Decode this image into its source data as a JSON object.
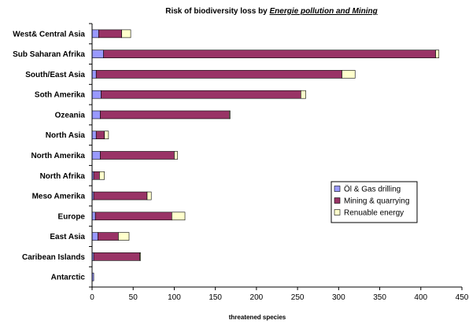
{
  "chart_data": {
    "type": "bar",
    "orientation": "horizontal",
    "stacked": true,
    "title_prefix": "Risk of biodiversity loss by ",
    "title_emphasis": "Energie pollution and Mining",
    "xlabel": "threatened species",
    "ylabel": "",
    "xlim": [
      0,
      450
    ],
    "xticks": [
      "0",
      "50",
      "100",
      "150",
      "200",
      "250",
      "300",
      "350",
      "400",
      "450"
    ],
    "grid": false,
    "legend_position": "right-middle",
    "categories": [
      "West& Central Asia",
      "Sub Saharan Afrika",
      "South/East Asia",
      "Soth Amerika",
      "Ozeania",
      "North Asia",
      "North Amerika",
      "North Afrika",
      "Meso Amerika",
      "Europe",
      "East Asia",
      "Caribean Islands",
      "Antarctic"
    ],
    "series": [
      {
        "name": "Öl & Gas drilling",
        "color": "#9999ff",
        "values": [
          8,
          14,
          5,
          11,
          10,
          5,
          10,
          2,
          2,
          4,
          7,
          2,
          2
        ]
      },
      {
        "name": "Mining & quarrying",
        "color": "#993366",
        "values": [
          28,
          404,
          299,
          243,
          157,
          10,
          90,
          7,
          65,
          93,
          25,
          56,
          0
        ]
      },
      {
        "name": "Renuable energy",
        "color": "#ffffcc",
        "values": [
          11,
          4,
          16,
          6,
          1,
          5,
          4,
          6,
          5,
          16,
          13,
          1,
          0
        ]
      }
    ]
  }
}
